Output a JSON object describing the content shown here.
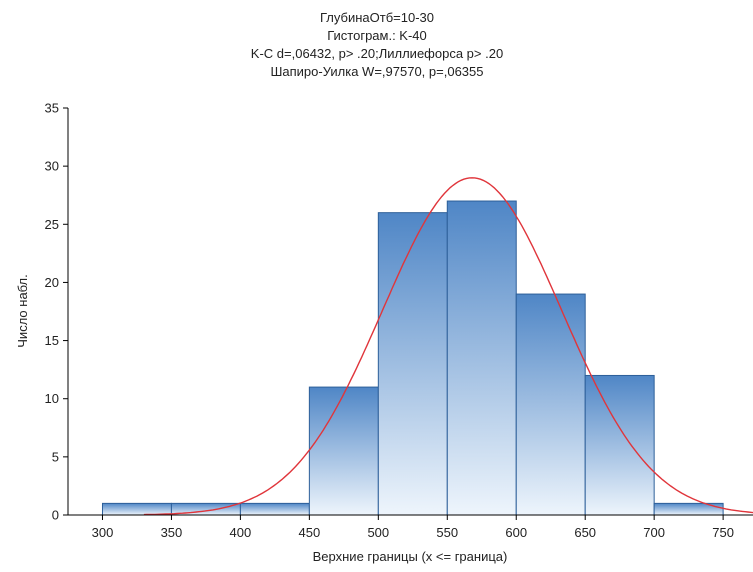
{
  "chart_data": {
    "type": "bar",
    "title_lines": [
      "ГлубинаОтб=10-30",
      "Гистограм.: K-40",
      "K-C d=,06432, p> .20;Лиллиефорса p> .20",
      "Шапиро-Уилка W=,97570, p=,06355"
    ],
    "xlabel": "Верхние границы (x <= граница)",
    "ylabel": "Число набл.",
    "xlim": [
      275,
      775
    ],
    "ylim": [
      0,
      35
    ],
    "x_ticks": [
      300,
      350,
      400,
      450,
      500,
      550,
      600,
      650,
      700,
      750
    ],
    "y_ticks": [
      0,
      5,
      10,
      15,
      20,
      25,
      30,
      35
    ],
    "bin_upper_bounds": [
      350,
      400,
      450,
      500,
      550,
      600,
      650,
      700,
      750
    ],
    "bin_width": 50,
    "values": [
      1,
      1,
      1,
      11,
      26,
      27,
      19,
      12,
      1
    ],
    "normal_curve": {
      "mean": 568,
      "sd": 65,
      "peak": 29
    },
    "colors": {
      "bar_top": "#4f86c6",
      "bar_bottom": "#eef5fc",
      "bar_edge": "#2d5f99",
      "curve": "#e0353b"
    }
  }
}
